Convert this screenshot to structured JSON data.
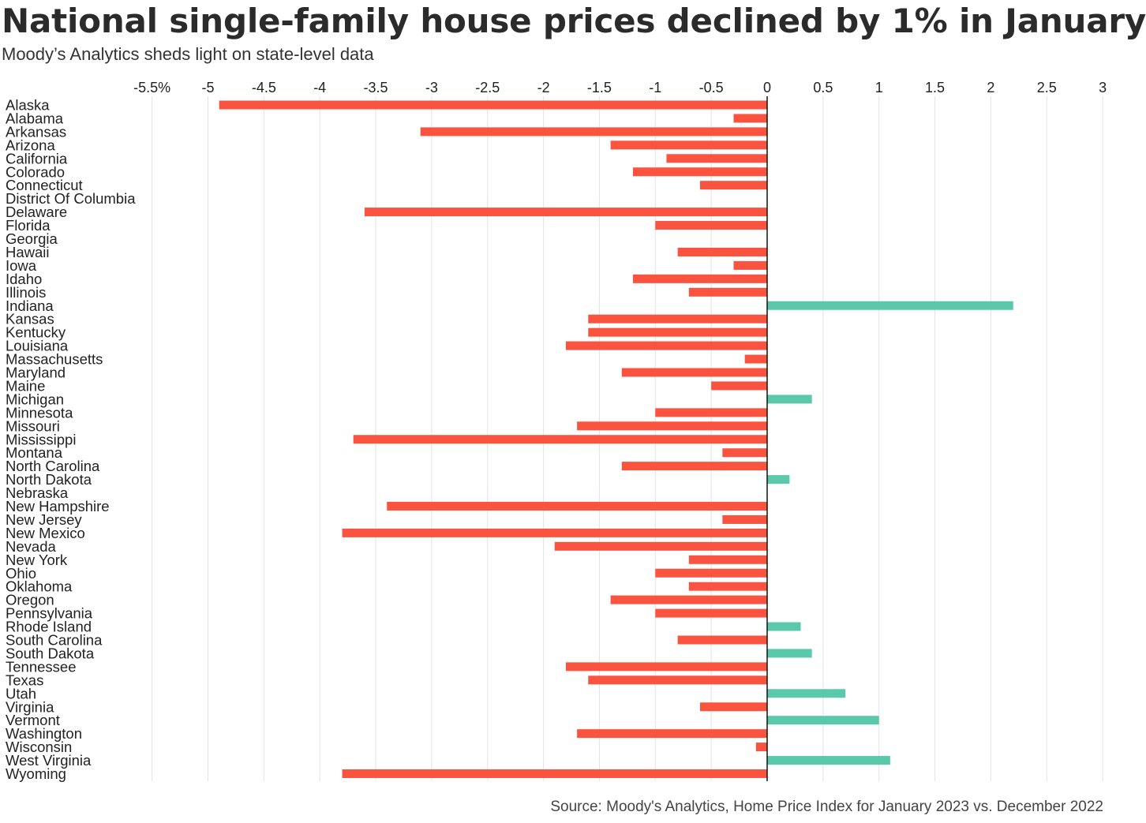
{
  "header": {
    "title": "National single-family house prices declined by 1% in January",
    "subtitle": "Moody’s Analytics sheds light on state-level data"
  },
  "footer": {
    "source": "Source: Moody's Analytics, Home Price Index for January 2023 vs. December 2022"
  },
  "colors": {
    "negative": "#fa5340",
    "positive": "#5ac8aa",
    "grid": "#e3e3e3",
    "zero_line": "#111111"
  },
  "chart_data": {
    "type": "bar",
    "orientation": "horizontal",
    "title": "National single-family house prices declined by 1% in January",
    "subtitle": "Moody’s Analytics sheds light on state-level data",
    "xlim": [
      -5.5,
      3
    ],
    "x_tick_values": [
      -5.5,
      -5,
      -4.5,
      -4,
      -3.5,
      -3,
      -2.5,
      -2,
      -1.5,
      -1,
      -0.5,
      0,
      0.5,
      1,
      1.5,
      2,
      2.5,
      3
    ],
    "x_tick_labels": [
      "-5.5%",
      "-5",
      "-4.5",
      "-4",
      "-3.5",
      "-3",
      "-2.5",
      "-2",
      "-1.5",
      "-1",
      "-0.5",
      "0",
      "0.5",
      "1",
      "1.5",
      "2",
      "2.5",
      "3"
    ],
    "grid": true,
    "legend": "none",
    "categories": [
      "Alaska",
      "Alabama",
      "Arkansas",
      "Arizona",
      "California",
      "Colorado",
      "Connecticut",
      "District Of Columbia",
      "Delaware",
      "Florida",
      "Georgia",
      "Hawaii",
      "Iowa",
      "Idaho",
      "Illinois",
      "Indiana",
      "Kansas",
      "Kentucky",
      "Louisiana",
      "Massachusetts",
      "Maryland",
      "Maine",
      "Michigan",
      "Minnesota",
      "Missouri",
      "Mississippi",
      "Montana",
      "North Carolina",
      "North Dakota",
      "Nebraska",
      "New Hampshire",
      "New Jersey",
      "New Mexico",
      "Nevada",
      "New York",
      "Ohio",
      "Oklahoma",
      "Oregon",
      "Pennsylvania",
      "Rhode Island",
      "South Carolina",
      "South Dakota",
      "Tennessee",
      "Texas",
      "Utah",
      "Virginia",
      "Vermont",
      "Washington",
      "Wisconsin",
      "West Virginia",
      "Wyoming"
    ],
    "values": [
      -4.9,
      -0.3,
      -3.1,
      -1.4,
      -0.9,
      -1.2,
      -0.6,
      0,
      -3.6,
      -1.0,
      0,
      -0.8,
      -0.3,
      -1.2,
      -0.7,
      2.2,
      -1.6,
      -1.6,
      -1.8,
      -0.2,
      -1.3,
      -0.5,
      0.4,
      -1.0,
      -1.7,
      -3.7,
      -0.4,
      -1.3,
      0.2,
      0,
      -3.4,
      -0.4,
      -3.8,
      -1.9,
      -0.7,
      -1.0,
      -0.7,
      -1.4,
      -1.0,
      0.3,
      -0.8,
      0.4,
      -1.8,
      -1.6,
      0.7,
      -0.6,
      1.0,
      -1.7,
      -0.1,
      1.1,
      -3.8
    ]
  }
}
